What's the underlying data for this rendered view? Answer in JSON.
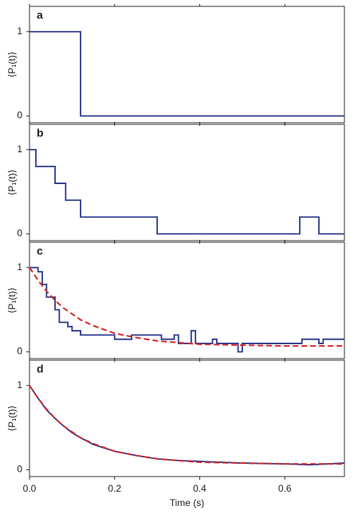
{
  "chart_data": [
    {
      "type": "line",
      "title": "a",
      "ylabel": "⟨P₁(t)⟩",
      "xlim": [
        0,
        0.74
      ],
      "ylim": [
        -0.08,
        1.3
      ],
      "yticks": [
        0,
        1
      ],
      "series": [
        {
          "color": "#2e3a8c",
          "style": "step",
          "x": [
            0,
            0.12,
            0.74
          ],
          "values": [
            1,
            0,
            0
          ]
        }
      ]
    },
    {
      "type": "line",
      "title": "b",
      "ylabel": "⟨P₁(t)⟩",
      "xlim": [
        0,
        0.74
      ],
      "ylim": [
        -0.08,
        1.3
      ],
      "yticks": [
        0,
        1
      ],
      "series": [
        {
          "color": "#2e3a8c",
          "style": "step",
          "x": [
            0,
            0.015,
            0.06,
            0.085,
            0.12,
            0.3,
            0.635,
            0.68,
            0.74
          ],
          "values": [
            1,
            0.8,
            0.6,
            0.4,
            0.2,
            0,
            0.2,
            0,
            0
          ]
        }
      ]
    },
    {
      "type": "line",
      "title": "c",
      "ylabel": "⟨P₁(t)⟩",
      "xlim": [
        0,
        0.74
      ],
      "ylim": [
        -0.08,
        1.3
      ],
      "yticks": [
        0,
        1
      ],
      "series": [
        {
          "color": "#2e3a8c",
          "style": "step",
          "x": [
            0,
            0.02,
            0.03,
            0.04,
            0.06,
            0.07,
            0.09,
            0.1,
            0.12,
            0.2,
            0.24,
            0.31,
            0.34,
            0.35,
            0.37,
            0.38,
            0.39,
            0.43,
            0.44,
            0.49,
            0.5,
            0.64,
            0.68,
            0.69,
            0.74
          ],
          "values": [
            1,
            0.95,
            0.8,
            0.65,
            0.5,
            0.35,
            0.3,
            0.25,
            0.2,
            0.15,
            0.2,
            0.15,
            0.2,
            0.1,
            0.1,
            0.25,
            0.1,
            0.15,
            0.1,
            0,
            0.1,
            0.15,
            0.1,
            0.15,
            0.15
          ]
        },
        {
          "color": "#d42a2a",
          "style": "dashed",
          "x": [
            0,
            0.02,
            0.04,
            0.06,
            0.08,
            0.1,
            0.12,
            0.15,
            0.2,
            0.25,
            0.3,
            0.35,
            0.4,
            0.5,
            0.6,
            0.74
          ],
          "values": [
            1,
            0.85,
            0.72,
            0.61,
            0.52,
            0.45,
            0.38,
            0.31,
            0.22,
            0.17,
            0.13,
            0.11,
            0.09,
            0.08,
            0.07,
            0.07
          ]
        }
      ]
    },
    {
      "type": "line",
      "title": "d",
      "ylabel": "⟨P₁(t)⟩",
      "xlabel": "Time (s)",
      "xlim": [
        0,
        0.74
      ],
      "ylim": [
        -0.08,
        1.3
      ],
      "yticks": [
        0,
        1
      ],
      "xticks": [
        {
          "value": 0,
          "label": "0.0"
        },
        0.2,
        0.4,
        0.6
      ],
      "series": [
        {
          "color": "#2e3a8c",
          "style": "solid",
          "x": [
            0,
            0.02,
            0.04,
            0.06,
            0.08,
            0.1,
            0.12,
            0.15,
            0.2,
            0.25,
            0.3,
            0.35,
            0.4,
            0.5,
            0.6,
            0.66,
            0.74
          ],
          "values": [
            1,
            0.85,
            0.71,
            0.61,
            0.52,
            0.44,
            0.38,
            0.3,
            0.22,
            0.17,
            0.13,
            0.11,
            0.1,
            0.08,
            0.07,
            0.06,
            0.08
          ]
        },
        {
          "color": "#d42a2a",
          "style": "dashed",
          "x": [
            0,
            0.02,
            0.04,
            0.06,
            0.08,
            0.1,
            0.12,
            0.15,
            0.2,
            0.25,
            0.3,
            0.35,
            0.4,
            0.5,
            0.6,
            0.74
          ],
          "values": [
            1,
            0.85,
            0.72,
            0.61,
            0.52,
            0.45,
            0.38,
            0.31,
            0.22,
            0.17,
            0.13,
            0.11,
            0.09,
            0.08,
            0.07,
            0.07
          ]
        }
      ]
    }
  ]
}
